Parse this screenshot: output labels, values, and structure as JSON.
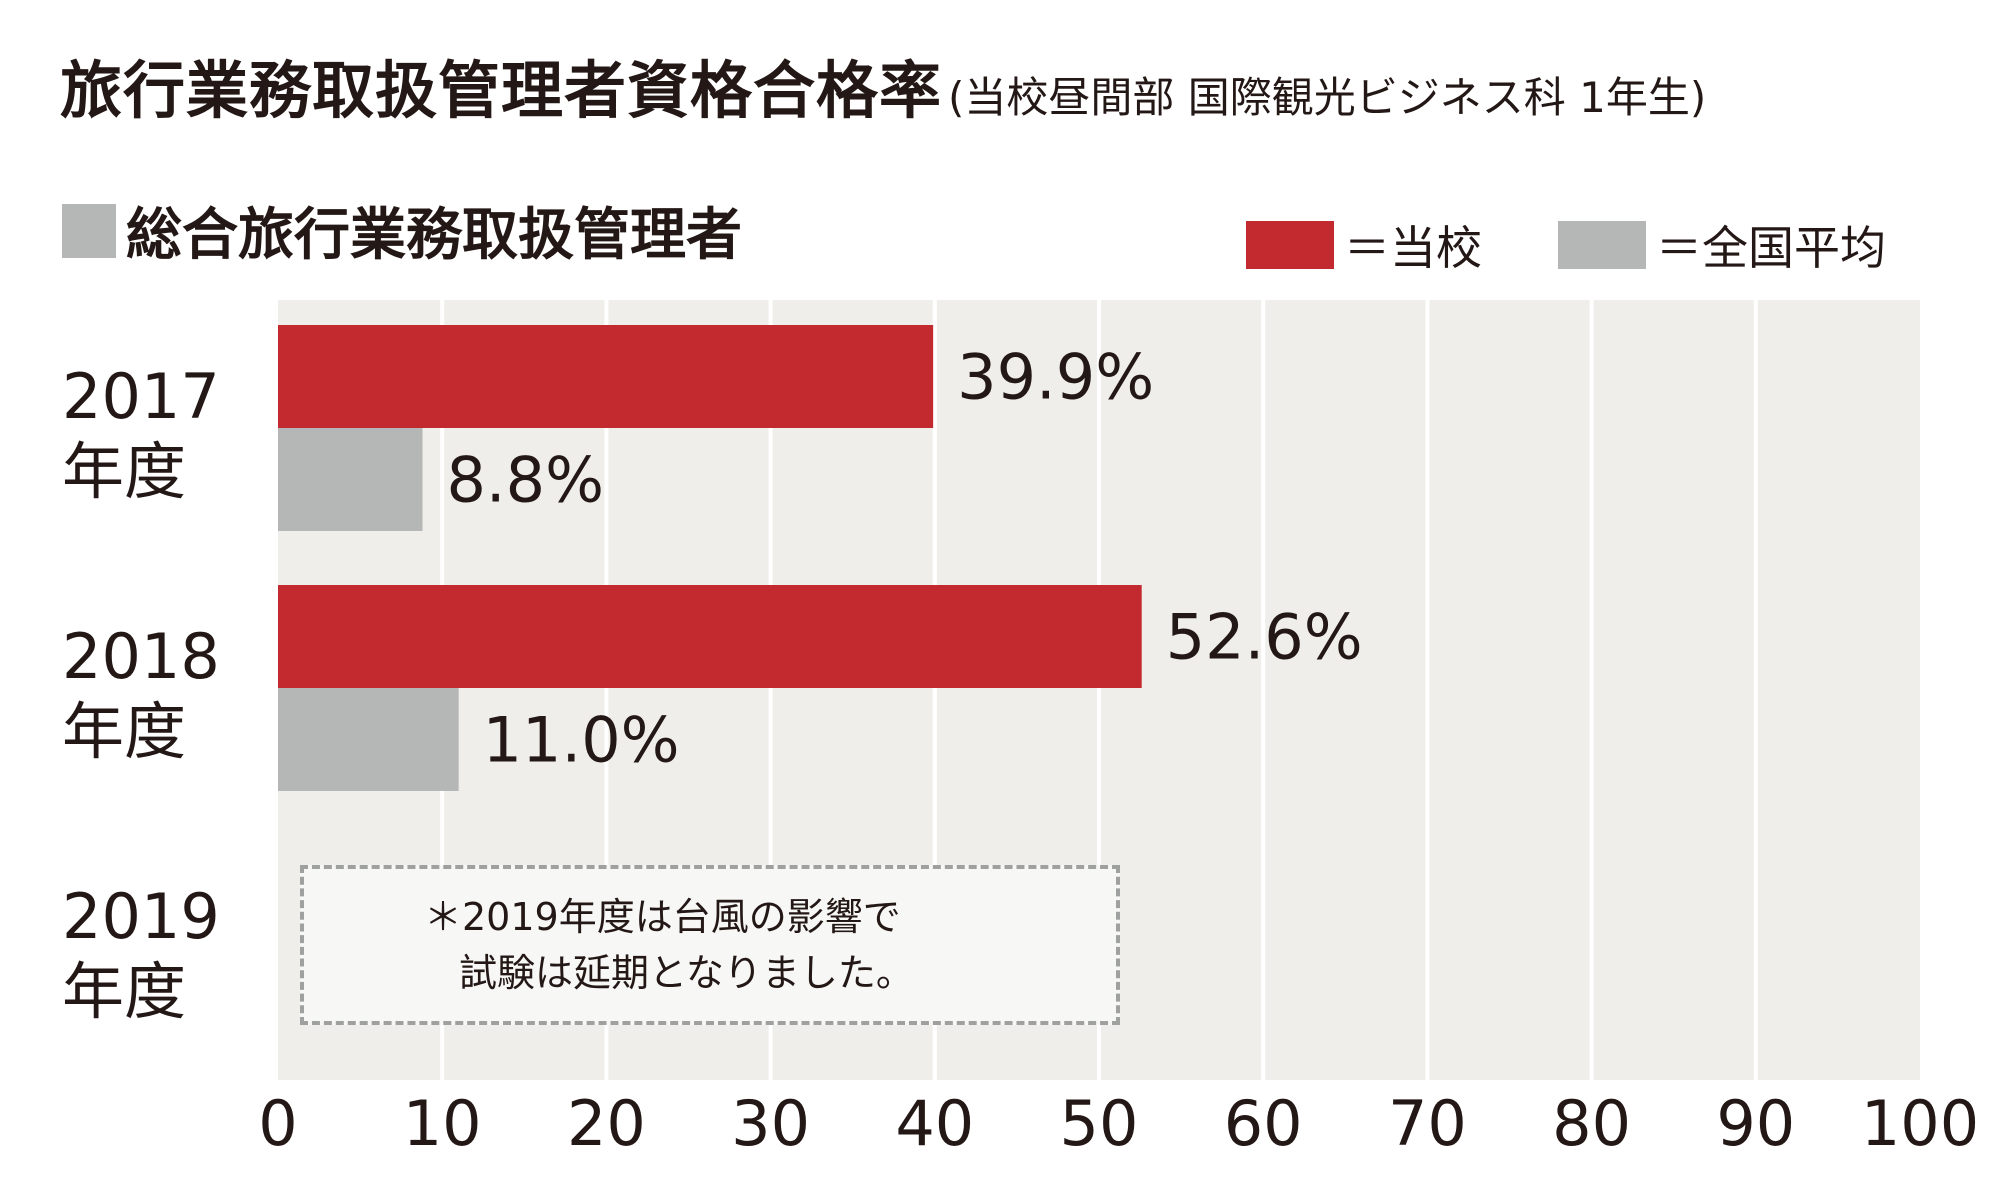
{
  "title": {
    "main": "旅行業務取扱管理者資格合格率",
    "sub": "(当校昼間部 国際観光ビジネス科 1年生)"
  },
  "subheading": "総合旅行業務取扱管理者",
  "legend": [
    {
      "label": "＝当校",
      "color": "#c32a30"
    },
    {
      "label": "＝全国平均",
      "color": "#b5b6b6"
    }
  ],
  "note": {
    "line1": "＊2019年度は台風の影響で",
    "line2": "試験は延期となりました。"
  },
  "colors": {
    "school": "#c32a30",
    "national": "#b5b6b6",
    "plot_bg": "#efeeea",
    "grid": "#ffffff",
    "text": "#231815"
  },
  "chart_data": {
    "type": "bar",
    "orientation": "horizontal",
    "categories": [
      {
        "year": "2017",
        "suffix": "年度"
      },
      {
        "year": "2018",
        "suffix": "年度"
      },
      {
        "year": "2019",
        "suffix": "年度"
      }
    ],
    "series": [
      {
        "name": "当校",
        "values": [
          39.9,
          52.6,
          null
        ],
        "labels": [
          "39.9%",
          "52.6%",
          ""
        ]
      },
      {
        "name": "全国平均",
        "values": [
          8.8,
          11.0,
          null
        ],
        "labels": [
          "8.8%",
          "11.0%",
          ""
        ]
      }
    ],
    "xlim": [
      0,
      100
    ],
    "xticks": [
      0,
      10,
      20,
      30,
      40,
      50,
      60,
      70,
      80,
      90,
      100
    ],
    "grid": true
  }
}
